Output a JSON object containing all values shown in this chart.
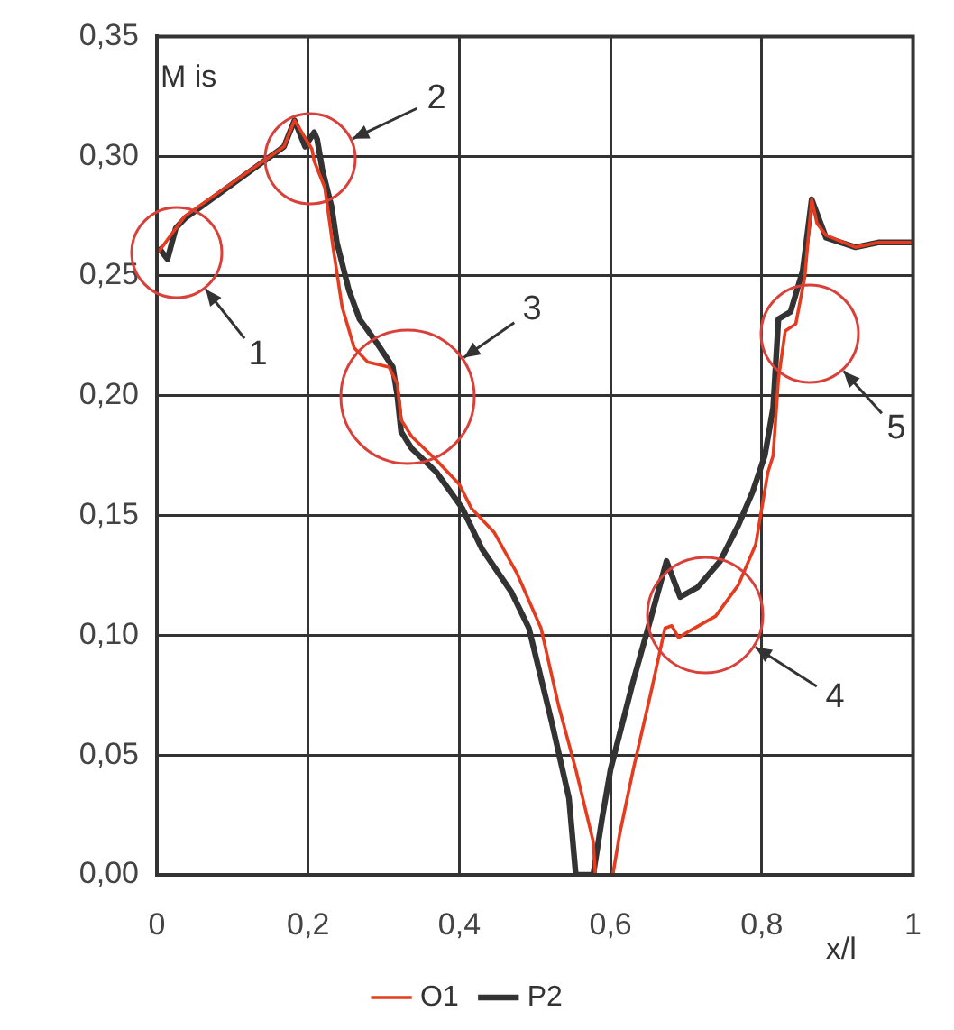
{
  "chart_data": {
    "type": "line",
    "xlabel": "x/l",
    "ylabel": "M is",
    "xlim": [
      0,
      1
    ],
    "ylim": [
      0,
      0.35
    ],
    "xticks": [
      0,
      {
        "value": 0.2,
        "label": "0,2"
      },
      {
        "value": 0.4,
        "label": "0,4"
      },
      {
        "value": 0.6,
        "label": "0,6"
      },
      {
        "value": 0.8,
        "label": "0,8"
      },
      1
    ],
    "yticks": [
      {
        "value": 0,
        "label": "0,00"
      },
      {
        "value": 0.05,
        "label": "0,05"
      },
      {
        "value": 0.1,
        "label": "0,10"
      },
      {
        "value": 0.15,
        "label": "0,15"
      },
      {
        "value": 0.2,
        "label": "0,20"
      },
      {
        "value": 0.25,
        "label": "0,25"
      },
      {
        "value": 0.3,
        "label": "0,30"
      },
      {
        "value": 0.35,
        "label": "0,35"
      }
    ],
    "grid": true,
    "legend": "bottom",
    "marker": "none",
    "line_style": "solid",
    "series": [
      {
        "name": "O1",
        "color": "#e53b1f",
        "x": [
          0.002,
          0.037,
          0.168,
          0.182,
          0.205,
          0.208,
          0.222,
          0.233,
          0.245,
          0.261,
          0.279,
          0.307,
          0.318,
          0.323,
          0.337,
          0.37,
          0.4,
          0.416,
          0.446,
          0.476,
          0.508,
          0.531,
          0.554,
          0.577,
          0.58,
          0.603,
          0.612,
          0.63,
          0.654,
          0.672,
          0.681,
          0.69,
          0.7,
          0.739,
          0.769,
          0.792,
          0.808,
          0.815,
          0.822,
          0.831,
          0.845,
          0.857,
          0.866,
          0.873,
          0.885,
          0.924,
          0.954,
          1.0
        ],
        "values": [
          0.26,
          0.275,
          0.304,
          0.315,
          0.303,
          0.298,
          0.287,
          0.262,
          0.237,
          0.22,
          0.214,
          0.212,
          0.205,
          0.19,
          0.183,
          0.173,
          0.163,
          0.153,
          0.143,
          0.126,
          0.103,
          0.071,
          0.044,
          0.014,
          0.0,
          0.0,
          0.017,
          0.044,
          0.077,
          0.103,
          0.104,
          0.099,
          0.101,
          0.108,
          0.121,
          0.138,
          0.168,
          0.175,
          0.207,
          0.227,
          0.23,
          0.25,
          0.282,
          0.272,
          0.267,
          0.262,
          0.264,
          0.264
        ]
      },
      {
        "name": "P2",
        "color": "#333333",
        "x": [
          0.002,
          0.014,
          0.025,
          0.037,
          0.168,
          0.182,
          0.196,
          0.208,
          0.212,
          0.219,
          0.231,
          0.238,
          0.254,
          0.268,
          0.291,
          0.312,
          0.318,
          0.323,
          0.337,
          0.37,
          0.404,
          0.43,
          0.469,
          0.492,
          0.522,
          0.545,
          0.554,
          0.577,
          0.589,
          0.6,
          0.63,
          0.654,
          0.674,
          0.692,
          0.715,
          0.745,
          0.769,
          0.788,
          0.804,
          0.815,
          0.822,
          0.838,
          0.854,
          0.866,
          0.885,
          0.924,
          0.954,
          1.0
        ],
        "values": [
          0.262,
          0.257,
          0.27,
          0.274,
          0.304,
          0.315,
          0.304,
          0.31,
          0.307,
          0.294,
          0.279,
          0.264,
          0.244,
          0.232,
          0.222,
          0.212,
          0.2,
          0.185,
          0.178,
          0.168,
          0.153,
          0.136,
          0.118,
          0.103,
          0.064,
          0.032,
          0.0,
          0.0,
          0.024,
          0.044,
          0.081,
          0.108,
          0.131,
          0.116,
          0.12,
          0.131,
          0.146,
          0.16,
          0.175,
          0.195,
          0.232,
          0.235,
          0.252,
          0.282,
          0.266,
          0.262,
          0.264,
          0.264
        ]
      }
    ],
    "annotations": [
      "1",
      "2",
      "3",
      "4",
      "5"
    ]
  }
}
